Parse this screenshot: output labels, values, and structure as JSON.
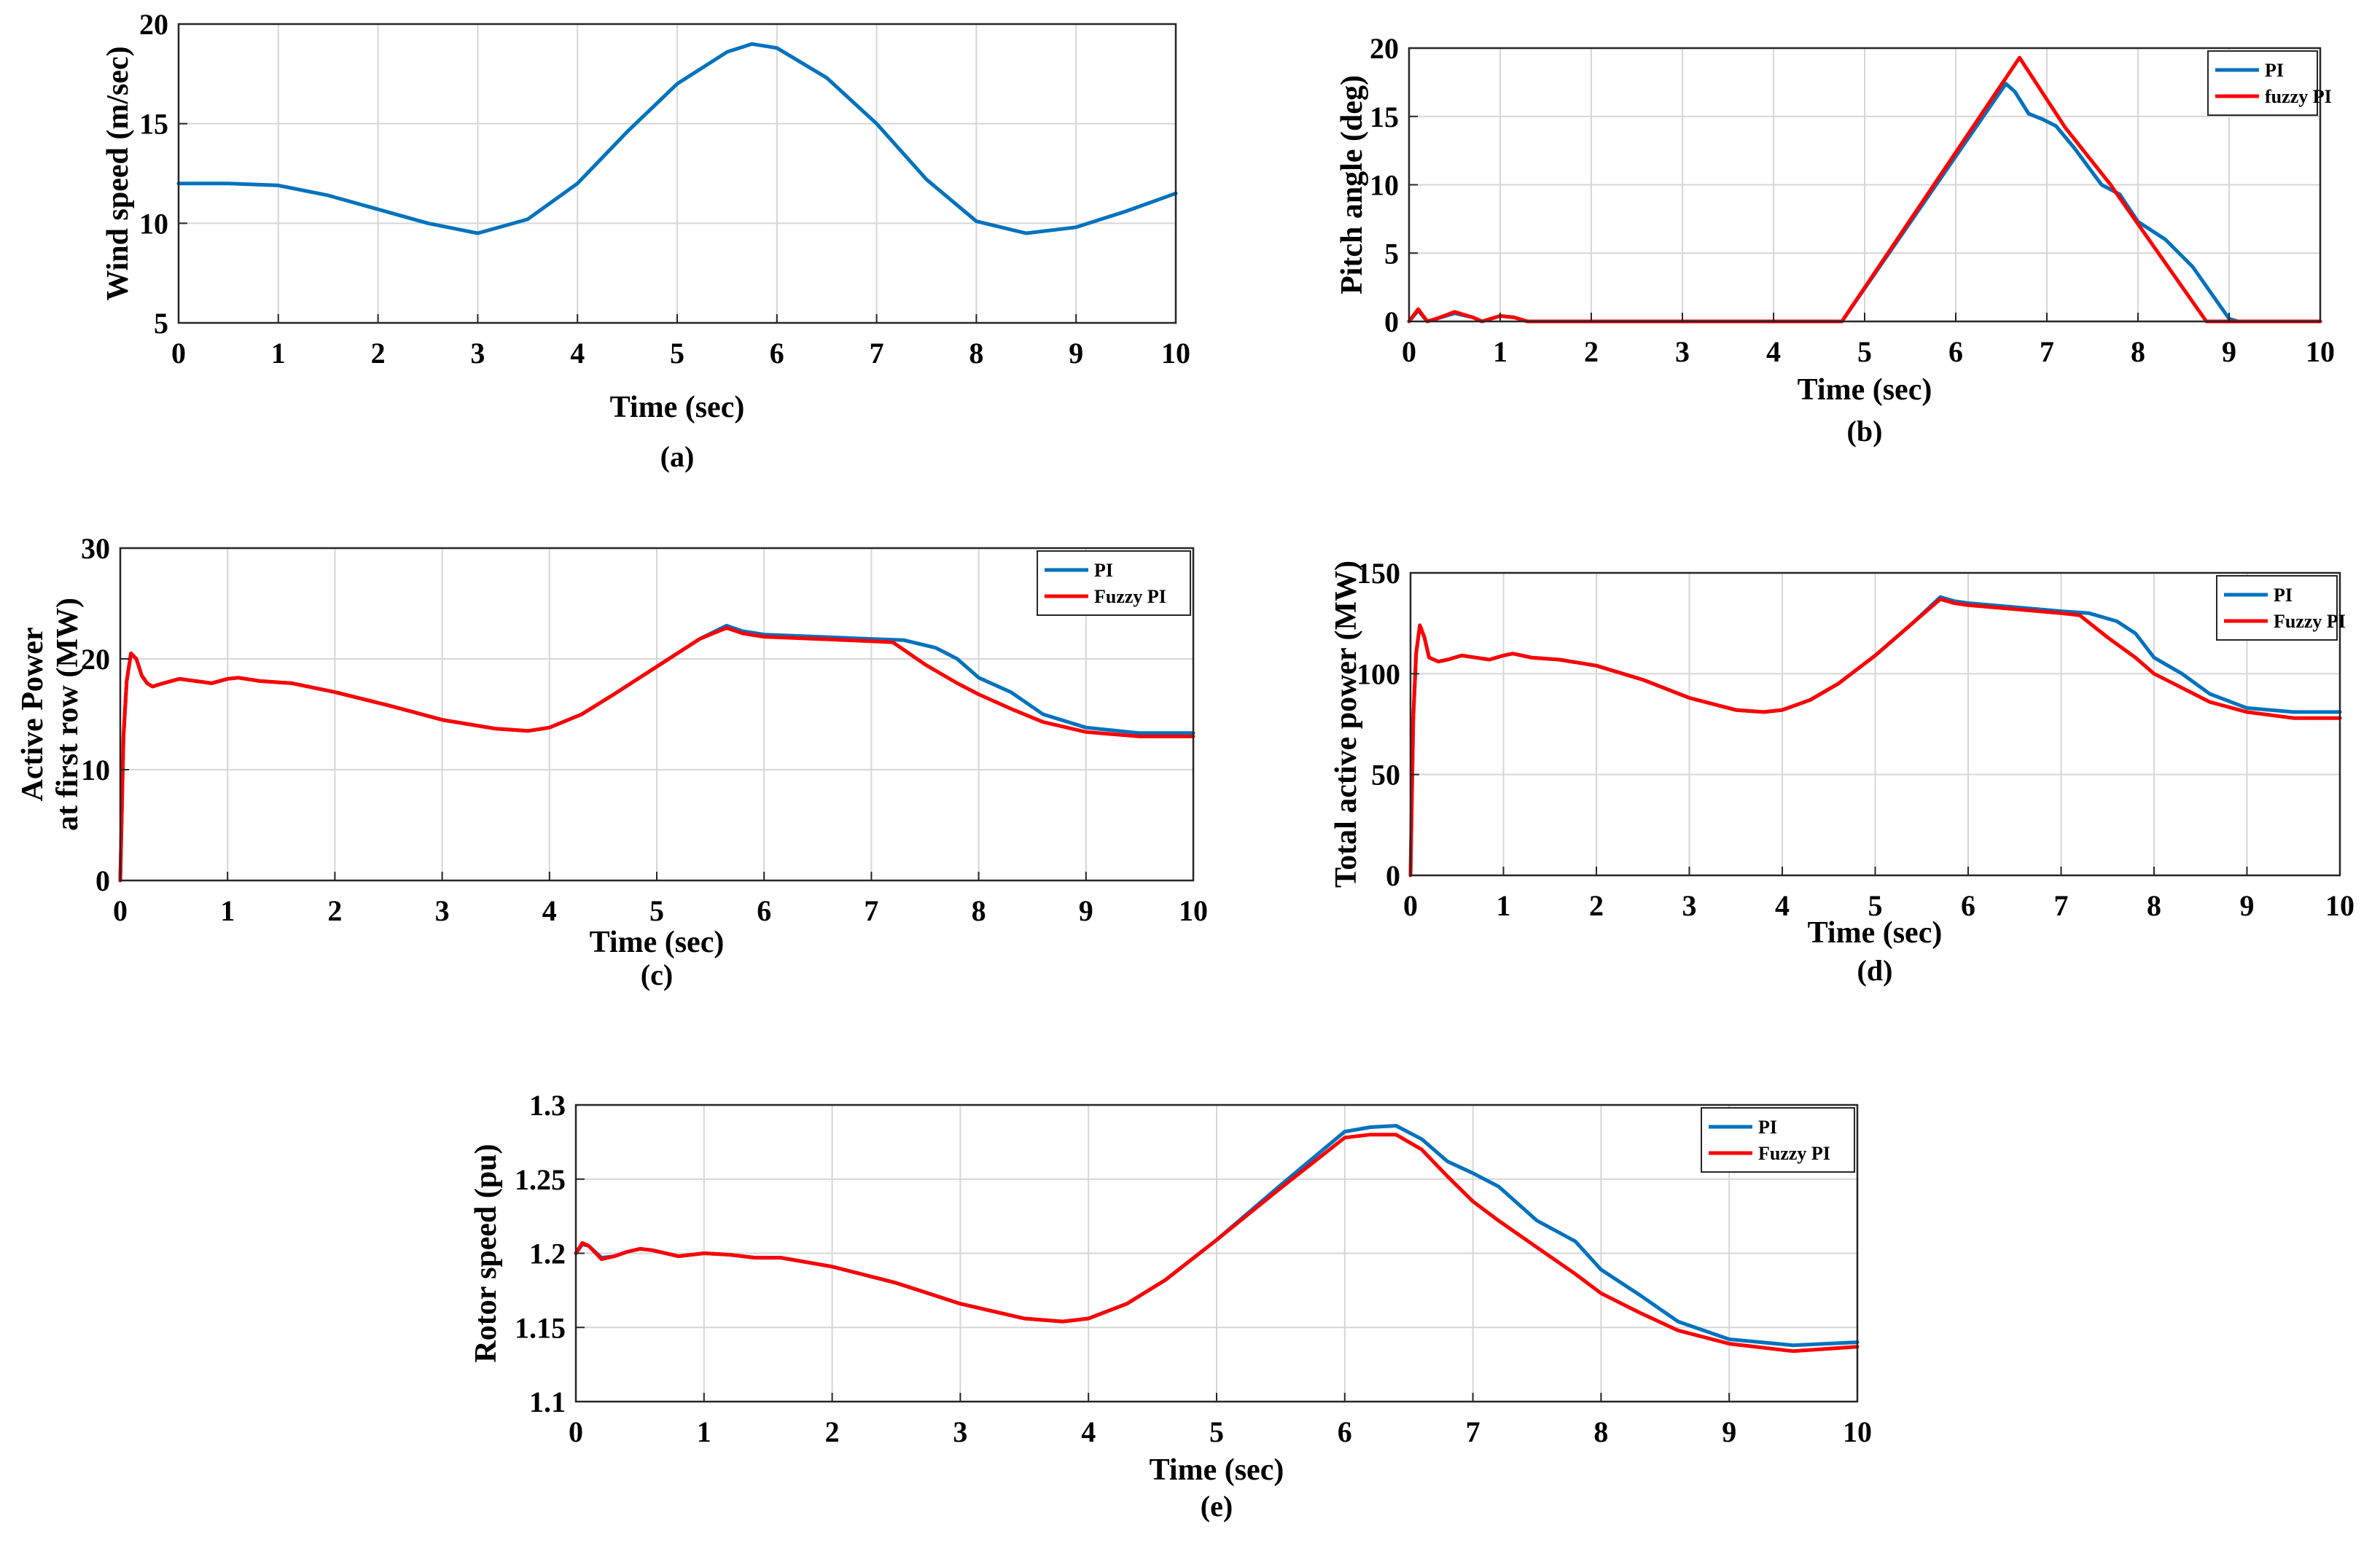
{
  "colors": {
    "pi": "#0072BD",
    "fuzzy": "#FF0000",
    "grid": "#d6d6d6",
    "axis": "#262626"
  },
  "chart_data": [
    {
      "id": "a",
      "type": "line",
      "caption": "(a)",
      "xlabel": "Time (sec)",
      "ylabel": "Wind speed (m/sec)",
      "xlim": [
        0,
        10
      ],
      "ylim": [
        5,
        20
      ],
      "xticks": [
        0,
        1,
        2,
        3,
        4,
        5,
        6,
        7,
        8,
        9,
        10
      ],
      "yticks": [
        5,
        10,
        15,
        20
      ],
      "legend": null,
      "series": [
        {
          "name": "Wind speed",
          "color": "#0072BD",
          "x": [
            0,
            0.5,
            1,
            1.5,
            2,
            2.5,
            3,
            3.5,
            4,
            4.5,
            5,
            5.5,
            5.75,
            6,
            6.5,
            7,
            7.5,
            8,
            8.5,
            9,
            9.5,
            10
          ],
          "y": [
            12,
            12,
            11.9,
            11.4,
            10.7,
            10.0,
            9.5,
            10.2,
            12.0,
            14.6,
            17.0,
            18.6,
            19.0,
            18.8,
            17.3,
            15.0,
            12.2,
            10.1,
            9.5,
            9.8,
            10.6,
            11.5
          ]
        }
      ]
    },
    {
      "id": "b",
      "type": "line",
      "caption": "(b)",
      "xlabel": "Time (sec)",
      "ylabel": "Pitch angle (deg)",
      "xlim": [
        0,
        10
      ],
      "ylim": [
        0,
        20
      ],
      "xticks": [
        0,
        1,
        2,
        3,
        4,
        5,
        6,
        7,
        8,
        9,
        10
      ],
      "yticks": [
        0,
        5,
        10,
        15,
        20
      ],
      "legend": "top-right",
      "series": [
        {
          "name": "PI",
          "color": "#0072BD",
          "x": [
            0,
            0.1,
            0.2,
            0.3,
            0.5,
            0.7,
            0.8,
            1.0,
            1.15,
            1.3,
            4.75,
            6.55,
            6.65,
            6.8,
            6.95,
            7.1,
            7.3,
            7.6,
            7.8,
            8.0,
            8.3,
            8.6,
            9.0,
            9.1,
            10
          ],
          "y": [
            0,
            0.8,
            0,
            0.2,
            0.6,
            0.3,
            0,
            0.4,
            0.3,
            0,
            0,
            17.4,
            16.8,
            15.2,
            14.8,
            14.3,
            12.7,
            10.0,
            9.3,
            7.3,
            6.0,
            4.0,
            0.2,
            0,
            0
          ]
        },
        {
          "name": "fuzzy PI",
          "color": "#FF0000",
          "x": [
            0,
            0.1,
            0.2,
            0.3,
            0.5,
            0.7,
            0.8,
            1.0,
            1.15,
            1.3,
            4.75,
            6.7,
            7.2,
            7.7,
            7.75,
            8.75,
            10
          ],
          "y": [
            0,
            0.9,
            0,
            0.2,
            0.7,
            0.3,
            0,
            0.4,
            0.3,
            0,
            0,
            19.3,
            14.2,
            10.0,
            9.5,
            0,
            0
          ]
        }
      ]
    },
    {
      "id": "c",
      "type": "line",
      "caption": "(c)",
      "xlabel": "Time (sec)",
      "ylabel": "Active Power at first row (MW)",
      "ylabel_lines": [
        "Active Power",
        "at first row (MW)"
      ],
      "xlim": [
        0,
        10
      ],
      "ylim": [
        0,
        30
      ],
      "xticks": [
        0,
        1,
        2,
        3,
        4,
        5,
        6,
        7,
        8,
        9,
        10
      ],
      "yticks": [
        0,
        10,
        20,
        30
      ],
      "legend": "top-right",
      "series": [
        {
          "name": "PI",
          "color": "#0072BD",
          "x": [
            0,
            0.03,
            0.06,
            0.1,
            0.15,
            0.2,
            0.25,
            0.3,
            0.4,
            0.55,
            0.7,
            0.85,
            1.0,
            1.1,
            1.3,
            1.6,
            2.0,
            2.5,
            3.0,
            3.5,
            3.8,
            4.0,
            4.3,
            4.6,
            5.0,
            5.4,
            5.65,
            5.8,
            6.0,
            6.5,
            7.0,
            7.3,
            7.6,
            7.8,
            8.0,
            8.3,
            8.6,
            9.0,
            9.5,
            10
          ],
          "y": [
            0,
            13,
            18,
            20.5,
            20.0,
            18.5,
            17.8,
            17.5,
            17.8,
            18.2,
            18.0,
            17.8,
            18.2,
            18.3,
            18.0,
            17.8,
            17.0,
            15.8,
            14.5,
            13.7,
            13.5,
            13.8,
            15.0,
            16.8,
            19.3,
            21.8,
            23.0,
            22.5,
            22.2,
            22.0,
            21.8,
            21.7,
            21.0,
            20.0,
            18.3,
            17.0,
            15.0,
            13.8,
            13.3,
            13.3
          ]
        },
        {
          "name": "Fuzzy PI",
          "color": "#FF0000",
          "x": [
            0,
            0.03,
            0.06,
            0.1,
            0.15,
            0.2,
            0.25,
            0.3,
            0.4,
            0.55,
            0.7,
            0.85,
            1.0,
            1.1,
            1.3,
            1.6,
            2.0,
            2.5,
            3.0,
            3.5,
            3.8,
            4.0,
            4.3,
            4.6,
            5.0,
            5.4,
            5.65,
            5.8,
            6.0,
            6.5,
            7.0,
            7.2,
            7.5,
            7.8,
            8.0,
            8.3,
            8.6,
            9.0,
            9.5,
            10
          ],
          "y": [
            0,
            13,
            18,
            20.5,
            20.0,
            18.5,
            17.8,
            17.5,
            17.8,
            18.2,
            18.0,
            17.8,
            18.2,
            18.3,
            18.0,
            17.8,
            17.0,
            15.8,
            14.5,
            13.7,
            13.5,
            13.8,
            15.0,
            16.8,
            19.3,
            21.8,
            22.8,
            22.3,
            22.0,
            21.8,
            21.6,
            21.5,
            19.5,
            17.8,
            16.8,
            15.5,
            14.3,
            13.4,
            13.0,
            13.0
          ]
        }
      ]
    },
    {
      "id": "d",
      "type": "line",
      "caption": "(d)",
      "xlabel": "Time (sec)",
      "ylabel": "Total active power (MW)",
      "xlim": [
        0,
        10
      ],
      "ylim": [
        0,
        150
      ],
      "xticks": [
        0,
        1,
        2,
        3,
        4,
        5,
        6,
        7,
        8,
        9,
        10
      ],
      "yticks": [
        0,
        50,
        100,
        150
      ],
      "legend": "top-right",
      "series": [
        {
          "name": "PI",
          "color": "#0072BD",
          "x": [
            0,
            0.03,
            0.06,
            0.1,
            0.15,
            0.2,
            0.3,
            0.4,
            0.55,
            0.7,
            0.85,
            1.0,
            1.1,
            1.3,
            1.6,
            2.0,
            2.5,
            3.0,
            3.5,
            3.8,
            4.0,
            4.3,
            4.6,
            5.0,
            5.4,
            5.7,
            5.85,
            6.0,
            6.5,
            7.0,
            7.3,
            7.6,
            7.8,
            8.0,
            8.3,
            8.6,
            9.0,
            9.5,
            10
          ],
          "y": [
            0,
            78,
            110,
            124,
            118,
            108,
            106,
            107,
            109,
            108,
            107,
            109,
            110,
            108,
            107,
            104,
            97,
            88,
            82,
            81,
            82,
            87,
            95,
            109,
            125,
            138,
            136,
            135,
            133,
            131,
            130,
            126,
            120,
            108,
            100,
            90,
            83,
            81,
            81
          ]
        },
        {
          "name": "Fuzzy PI",
          "color": "#FF0000",
          "x": [
            0,
            0.03,
            0.06,
            0.1,
            0.15,
            0.2,
            0.3,
            0.4,
            0.55,
            0.7,
            0.85,
            1.0,
            1.1,
            1.3,
            1.6,
            2.0,
            2.5,
            3.0,
            3.5,
            3.8,
            4.0,
            4.3,
            4.6,
            5.0,
            5.4,
            5.7,
            5.85,
            6.0,
            6.5,
            7.0,
            7.2,
            7.5,
            7.8,
            8.0,
            8.3,
            8.6,
            9.0,
            9.5,
            10
          ],
          "y": [
            0,
            78,
            110,
            124,
            118,
            108,
            106,
            107,
            109,
            108,
            107,
            109,
            110,
            108,
            107,
            104,
            97,
            88,
            82,
            81,
            82,
            87,
            95,
            109,
            125,
            137,
            135,
            134,
            132,
            130,
            129,
            118,
            108,
            100,
            93,
            86,
            81,
            78,
            78
          ]
        }
      ]
    },
    {
      "id": "e",
      "type": "line",
      "caption": "(e)",
      "xlabel": "Time (sec)",
      "ylabel": "Rotor speed (pu)",
      "xlim": [
        0,
        10
      ],
      "ylim": [
        1.1,
        1.3
      ],
      "xticks": [
        0,
        1,
        2,
        3,
        4,
        5,
        6,
        7,
        8,
        9,
        10
      ],
      "yticks": [
        1.1,
        1.15,
        1.2,
        1.25,
        1.3
      ],
      "ytick_labels": [
        "1.1",
        "1.15",
        "1.2",
        "1.25",
        "1.3"
      ],
      "legend": "top-right",
      "series": [
        {
          "name": "PI",
          "color": "#0072BD",
          "x": [
            0,
            0.05,
            0.1,
            0.2,
            0.3,
            0.4,
            0.5,
            0.6,
            0.8,
            1.0,
            1.2,
            1.4,
            1.6,
            2.0,
            2.5,
            3.0,
            3.5,
            3.8,
            4.0,
            4.3,
            4.6,
            5.0,
            5.5,
            6.0,
            6.2,
            6.4,
            6.6,
            6.8,
            7.0,
            7.2,
            7.5,
            7.8,
            8.0,
            8.3,
            8.6,
            9.0,
            9.5,
            10
          ],
          "y": [
            1.2,
            1.206,
            1.205,
            1.197,
            1.198,
            1.201,
            1.203,
            1.202,
            1.198,
            1.2,
            1.199,
            1.197,
            1.197,
            1.191,
            1.18,
            1.166,
            1.156,
            1.154,
            1.156,
            1.166,
            1.182,
            1.209,
            1.246,
            1.282,
            1.285,
            1.286,
            1.277,
            1.262,
            1.254,
            1.245,
            1.222,
            1.208,
            1.189,
            1.172,
            1.154,
            1.142,
            1.138,
            1.14
          ]
        },
        {
          "name": "Fuzzy PI",
          "color": "#FF0000",
          "x": [
            0,
            0.05,
            0.1,
            0.2,
            0.3,
            0.4,
            0.5,
            0.6,
            0.8,
            1.0,
            1.2,
            1.4,
            1.6,
            2.0,
            2.5,
            3.0,
            3.5,
            3.8,
            4.0,
            4.3,
            4.6,
            5.0,
            5.5,
            6.0,
            6.2,
            6.4,
            6.6,
            6.8,
            7.0,
            7.2,
            7.5,
            7.8,
            8.0,
            8.3,
            8.6,
            9.0,
            9.5,
            10
          ],
          "y": [
            1.2,
            1.207,
            1.205,
            1.196,
            1.198,
            1.201,
            1.203,
            1.202,
            1.198,
            1.2,
            1.199,
            1.197,
            1.197,
            1.191,
            1.18,
            1.166,
            1.156,
            1.154,
            1.156,
            1.166,
            1.182,
            1.209,
            1.244,
            1.278,
            1.28,
            1.28,
            1.27,
            1.252,
            1.235,
            1.222,
            1.204,
            1.186,
            1.173,
            1.16,
            1.148,
            1.139,
            1.134,
            1.137
          ]
        }
      ]
    }
  ]
}
